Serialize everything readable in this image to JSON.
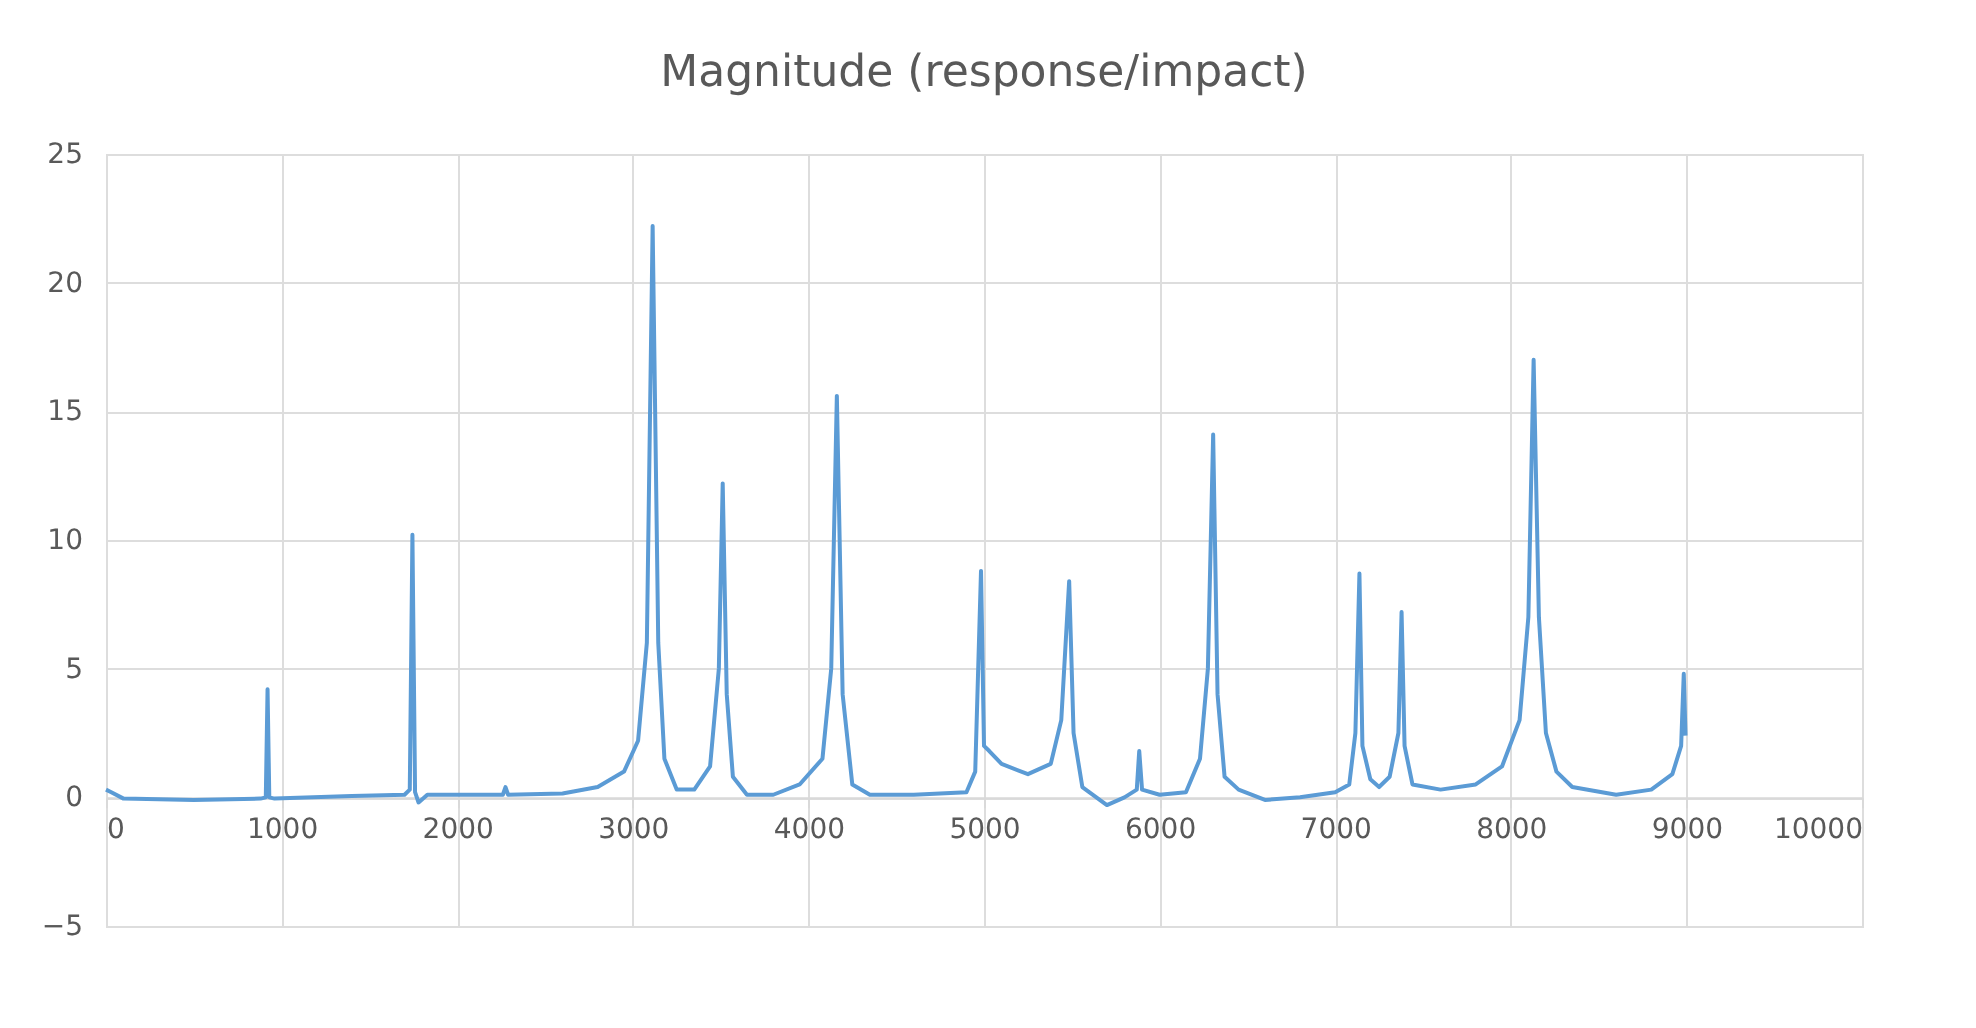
{
  "chart_data": {
    "type": "line",
    "title": "Magnitude (response/impact)",
    "x": [
      0,
      30,
      100,
      500,
      880,
      910,
      920,
      930,
      960,
      1400,
      1700,
      1730,
      1745,
      1760,
      1780,
      1830,
      2000,
      2260,
      2275,
      2290,
      2600,
      2800,
      2950,
      3030,
      3080,
      3113,
      3145,
      3180,
      3250,
      3350,
      3440,
      3490,
      3512,
      3535,
      3570,
      3650,
      3800,
      3950,
      4080,
      4130,
      4162,
      4195,
      4250,
      4350,
      4600,
      4900,
      4950,
      4983,
      5000,
      5030,
      5100,
      5250,
      5380,
      5440,
      5485,
      5510,
      5560,
      5700,
      5800,
      5870,
      5884,
      5900,
      6000,
      6150,
      6230,
      6275,
      6305,
      6330,
      6370,
      6450,
      6600,
      6800,
      7000,
      7080,
      7115,
      7138,
      7155,
      7200,
      7250,
      7310,
      7360,
      7378,
      7395,
      7440,
      7600,
      7800,
      7950,
      8050,
      8100,
      8130,
      8160,
      8200,
      8260,
      8350,
      8600,
      8800,
      8920,
      8970,
      8985,
      8995
    ],
    "series": [
      {
        "color": "#5b9bd5",
        "values": [
          0.3,
          0.2,
          -0.05,
          -0.1,
          -0.05,
          0,
          4.2,
          0,
          -0.05,
          0.05,
          0.1,
          0.3,
          10.2,
          0.2,
          -0.2,
          0.1,
          0.1,
          0.1,
          0.4,
          0.1,
          0.15,
          0.4,
          1.0,
          2.2,
          6,
          22.2,
          6,
          1.5,
          0.3,
          0.3,
          1.2,
          5,
          12.2,
          4,
          0.8,
          0.1,
          0.1,
          0.5,
          1.5,
          5,
          15.6,
          4,
          0.5,
          0.1,
          0.1,
          0.2,
          1.0,
          8.8,
          2.0,
          1.8,
          1.3,
          0.9,
          1.3,
          3,
          8.4,
          2.5,
          0.4,
          -0.3,
          0.0,
          0.3,
          1.8,
          0.3,
          0.1,
          0.2,
          1.5,
          5,
          14.1,
          4,
          0.8,
          0.3,
          -0.1,
          0.0,
          0.2,
          0.5,
          2.5,
          8.7,
          2,
          0.7,
          0.4,
          0.8,
          2.5,
          7.2,
          2,
          0.5,
          0.3,
          0.5,
          1.2,
          3,
          7,
          17.0,
          7,
          2.5,
          1,
          0.4,
          0.1,
          0.3,
          0.9,
          2,
          4.8,
          2.4
        ]
      }
    ],
    "xlim": [
      0,
      10000
    ],
    "xticks": [
      0,
      1000,
      2000,
      3000,
      4000,
      5000,
      6000,
      7000,
      8000,
      9000,
      10000
    ],
    "ylim": [
      -5,
      25
    ],
    "yticks": [
      -5,
      0,
      5,
      10,
      15,
      20,
      25
    ],
    "grid": true,
    "marker": "none",
    "line_style": "solid"
  }
}
